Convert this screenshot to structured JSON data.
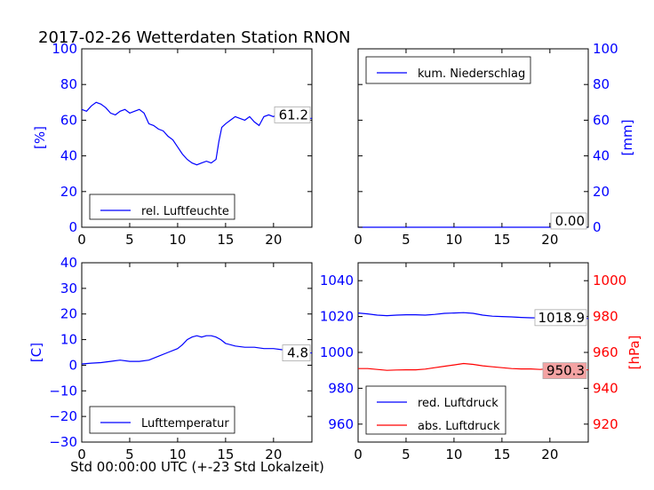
{
  "title": "2017-02-26 Wetterdaten Station RNON",
  "xlabel": "Std 00:00:00 UTC (+-23 Std Lokalzeit)",
  "colors": {
    "blue": "#0000ff",
    "red": "#ff0000",
    "value_box_red": "#f4a3a3"
  },
  "chart_data": [
    {
      "type": "line",
      "panel": "top-left",
      "ylabel": "[%]",
      "xlim": [
        0,
        24
      ],
      "ylim": [
        0,
        100
      ],
      "x_ticks": [
        "0",
        "5",
        "10",
        "15",
        "20"
      ],
      "y_ticks": [
        "0",
        "20",
        "40",
        "60",
        "80",
        "100"
      ],
      "legend": [
        "rel. Luftfeuchte"
      ],
      "legend_position": "lower-left",
      "last_value": "61.2",
      "series": [
        {
          "name": "rel. Luftfeuchte",
          "color": "#0000ff",
          "x": [
            0,
            0.5,
            1,
            1.5,
            2,
            2.5,
            3,
            3.5,
            4,
            4.5,
            5,
            5.5,
            6,
            6.5,
            7,
            7.5,
            8,
            8.5,
            9,
            9.5,
            10,
            10.5,
            11,
            11.5,
            12,
            12.5,
            13,
            13.5,
            14,
            14.3,
            14.6,
            15,
            15.5,
            16,
            16.5,
            17,
            17.5,
            18,
            18.5,
            19,
            19.5,
            20,
            20.5,
            21,
            21.5,
            22,
            22.5,
            23,
            23.5,
            24
          ],
          "y": [
            66,
            65,
            68,
            70,
            69,
            67,
            64,
            63,
            65,
            66,
            64,
            65,
            66,
            64,
            58,
            57,
            55,
            54,
            51,
            49,
            45,
            41,
            38,
            36,
            35,
            36,
            37,
            36,
            38,
            48,
            56,
            58,
            60,
            62,
            61,
            60,
            62,
            59,
            57,
            62,
            63,
            62,
            64,
            63,
            63,
            62,
            63,
            62,
            61,
            61
          ]
        }
      ]
    },
    {
      "type": "line",
      "panel": "top-right",
      "ylabel": "[mm]",
      "xlim": [
        0,
        24
      ],
      "ylim": [
        0,
        100
      ],
      "x_ticks": [
        "0",
        "5",
        "10",
        "15",
        "20"
      ],
      "y_ticks": [
        "0",
        "20",
        "40",
        "60",
        "80",
        "100"
      ],
      "legend": [
        "kum. Niederschlag"
      ],
      "legend_position": "upper-left",
      "last_value": "0.00",
      "series": [
        {
          "name": "kum. Niederschlag",
          "color": "#0000ff",
          "x": [
            0,
            24
          ],
          "y": [
            0,
            0
          ]
        }
      ]
    },
    {
      "type": "line",
      "panel": "bottom-left",
      "ylabel": "[C]",
      "xlim": [
        0,
        24
      ],
      "ylim": [
        -30,
        40
      ],
      "x_ticks": [
        "0",
        "5",
        "10",
        "15",
        "20"
      ],
      "y_ticks": [
        "−30",
        "−20",
        "−10",
        "0",
        "10",
        "20",
        "30",
        "40"
      ],
      "legend": [
        "Lufttemperatur"
      ],
      "legend_position": "lower-left",
      "last_value": "4.8",
      "series": [
        {
          "name": "Lufttemperatur",
          "color": "#0000ff",
          "x": [
            0,
            1,
            2,
            3,
            4,
            5,
            6,
            7,
            8,
            9,
            10,
            10.5,
            11,
            11.5,
            12,
            12.5,
            13,
            13.5,
            14,
            14.5,
            15,
            16,
            17,
            18,
            19,
            20,
            21,
            22,
            23,
            24
          ],
          "y": [
            0.5,
            0.8,
            1.0,
            1.5,
            2.0,
            1.5,
            1.5,
            2.0,
            3.5,
            5.0,
            6.5,
            8.0,
            10.0,
            11.0,
            11.5,
            11.0,
            11.5,
            11.5,
            11.0,
            10.0,
            8.5,
            7.5,
            7.0,
            7.0,
            6.5,
            6.5,
            6.0,
            5.5,
            5.0,
            4.8
          ]
        }
      ]
    },
    {
      "type": "line",
      "panel": "bottom-right",
      "ylabel": "[hPa]",
      "xlim": [
        0,
        24
      ],
      "ylim_left": [
        950,
        1050
      ],
      "ylim_right": [
        910,
        1010
      ],
      "x_ticks": [
        "0",
        "5",
        "10",
        "15",
        "20"
      ],
      "y_ticks_left": [
        "960",
        "980",
        "1000",
        "1020",
        "1040"
      ],
      "y_ticks_right": [
        "920",
        "940",
        "960",
        "980",
        "1000"
      ],
      "legend": [
        "red. Luftdruck",
        "abs. Luftdruck"
      ],
      "legend_position": "lower-left",
      "last_values": [
        "1018.9",
        "950.3"
      ],
      "series": [
        {
          "name": "red. Luftdruck",
          "color": "#0000ff",
          "axis": "left",
          "x": [
            0,
            1,
            2,
            3,
            4,
            5,
            6,
            7,
            8,
            9,
            10,
            11,
            12,
            13,
            14,
            15,
            16,
            17,
            18,
            19,
            20,
            21,
            22,
            23,
            24
          ],
          "y": [
            1022,
            1021.5,
            1020.8,
            1020.5,
            1020.8,
            1021,
            1021,
            1020.8,
            1021.2,
            1021.8,
            1022,
            1022.2,
            1021.8,
            1020.8,
            1020.2,
            1020,
            1019.8,
            1019.5,
            1019.3,
            1019.2,
            1019.5,
            1019.2,
            1019,
            1018.9,
            1018.9
          ]
        },
        {
          "name": "abs. Luftdruck",
          "color": "#ff0000",
          "axis": "right",
          "x": [
            0,
            1,
            2,
            3,
            4,
            5,
            6,
            7,
            8,
            9,
            10,
            11,
            12,
            13,
            14,
            15,
            16,
            17,
            18,
            19,
            20,
            21,
            22,
            23,
            24
          ],
          "y": [
            951,
            951,
            950.5,
            950,
            950.2,
            950.3,
            950.3,
            950.7,
            951.5,
            952.3,
            953,
            953.8,
            953.3,
            952.5,
            952,
            951.5,
            951,
            950.8,
            950.8,
            950.5,
            951,
            950.8,
            950.5,
            950.3,
            950.3
          ]
        }
      ]
    }
  ]
}
